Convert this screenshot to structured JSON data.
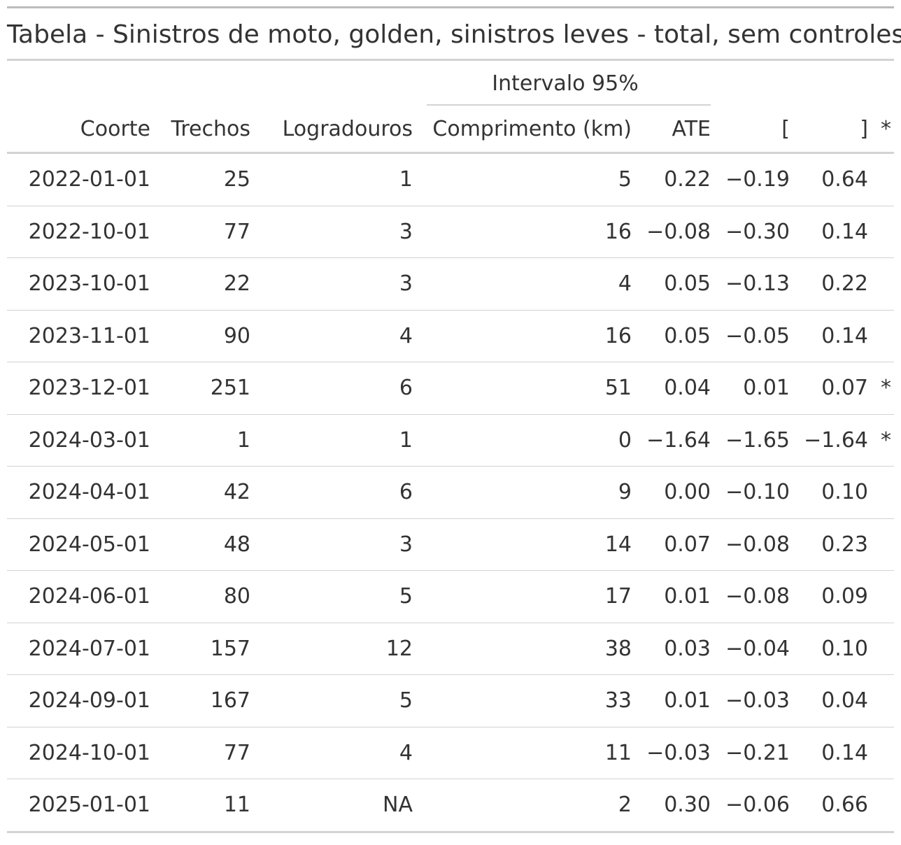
{
  "title": "Tabela - Sinistros de moto, golden, sinistros leves - total, sem controles",
  "spanner": "Intervalo 95%",
  "columns": {
    "coorte": "Coorte",
    "trechos": "Trechos",
    "logradouros": "Logradouros",
    "comprimento": "Comprimento (km)",
    "ate": "ATE",
    "lower": "[",
    "upper": "]",
    "sig": "*"
  },
  "rows": [
    {
      "coorte": "2022-01-01",
      "trechos": "25",
      "logradouros": "1",
      "comprimento": "5",
      "ate": "0.22",
      "lower": "−0.19",
      "upper": "0.64",
      "sig": ""
    },
    {
      "coorte": "2022-10-01",
      "trechos": "77",
      "logradouros": "3",
      "comprimento": "16",
      "ate": "−0.08",
      "lower": "−0.30",
      "upper": "0.14",
      "sig": ""
    },
    {
      "coorte": "2023-10-01",
      "trechos": "22",
      "logradouros": "3",
      "comprimento": "4",
      "ate": "0.05",
      "lower": "−0.13",
      "upper": "0.22",
      "sig": ""
    },
    {
      "coorte": "2023-11-01",
      "trechos": "90",
      "logradouros": "4",
      "comprimento": "16",
      "ate": "0.05",
      "lower": "−0.05",
      "upper": "0.14",
      "sig": ""
    },
    {
      "coorte": "2023-12-01",
      "trechos": "251",
      "logradouros": "6",
      "comprimento": "51",
      "ate": "0.04",
      "lower": "0.01",
      "upper": "0.07",
      "sig": "*"
    },
    {
      "coorte": "2024-03-01",
      "trechos": "1",
      "logradouros": "1",
      "comprimento": "0",
      "ate": "−1.64",
      "lower": "−1.65",
      "upper": "−1.64",
      "sig": "*"
    },
    {
      "coorte": "2024-04-01",
      "trechos": "42",
      "logradouros": "6",
      "comprimento": "9",
      "ate": "0.00",
      "lower": "−0.10",
      "upper": "0.10",
      "sig": ""
    },
    {
      "coorte": "2024-05-01",
      "trechos": "48",
      "logradouros": "3",
      "comprimento": "14",
      "ate": "0.07",
      "lower": "−0.08",
      "upper": "0.23",
      "sig": ""
    },
    {
      "coorte": "2024-06-01",
      "trechos": "80",
      "logradouros": "5",
      "comprimento": "17",
      "ate": "0.01",
      "lower": "−0.08",
      "upper": "0.09",
      "sig": ""
    },
    {
      "coorte": "2024-07-01",
      "trechos": "157",
      "logradouros": "12",
      "comprimento": "38",
      "ate": "0.03",
      "lower": "−0.04",
      "upper": "0.10",
      "sig": ""
    },
    {
      "coorte": "2024-09-01",
      "trechos": "167",
      "logradouros": "5",
      "comprimento": "33",
      "ate": "0.01",
      "lower": "−0.03",
      "upper": "0.04",
      "sig": ""
    },
    {
      "coorte": "2024-10-01",
      "trechos": "77",
      "logradouros": "4",
      "comprimento": "11",
      "ate": "−0.03",
      "lower": "−0.21",
      "upper": "0.14",
      "sig": ""
    },
    {
      "coorte": "2025-01-01",
      "trechos": "11",
      "logradouros": "NA",
      "comprimento": "2",
      "ate": "0.30",
      "lower": "−0.06",
      "upper": "0.66",
      "sig": ""
    }
  ],
  "colors": {
    "text": "#333333",
    "rule": "#d3d3d3",
    "top_rule": "#bcbcbc"
  }
}
